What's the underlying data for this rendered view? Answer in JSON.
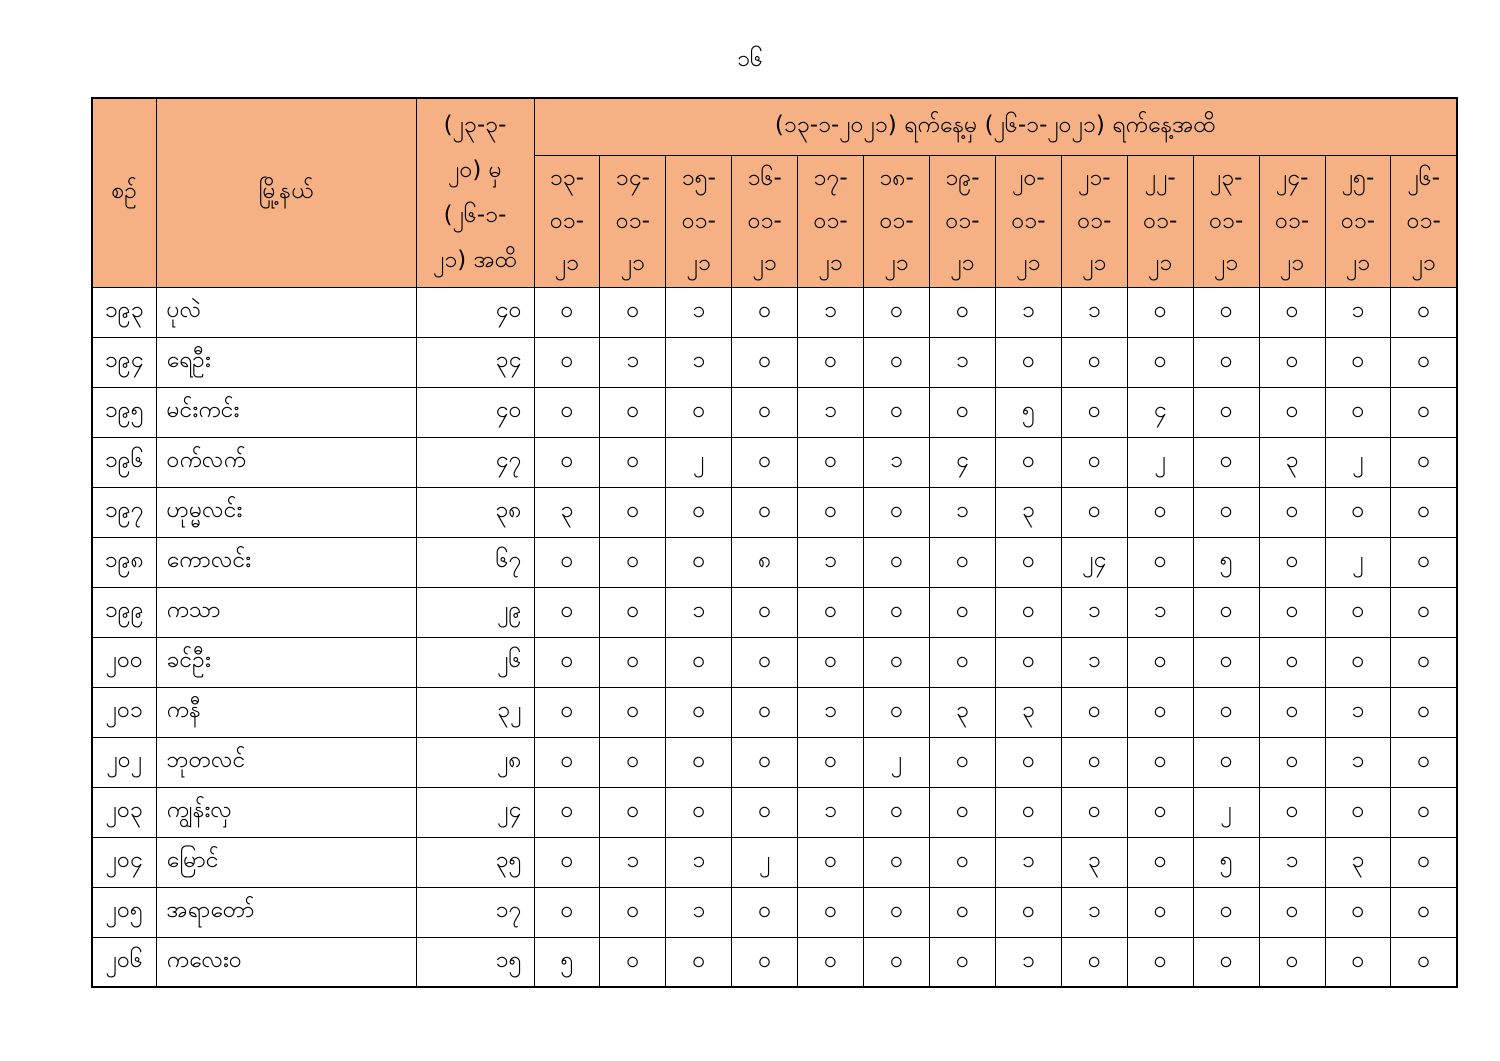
{
  "page": {
    "number": "၁၆"
  },
  "colors": {
    "header_bg": "#F5B183",
    "border": "#000000",
    "background": "#FFFFFF",
    "text": "#000000"
  },
  "table": {
    "header": {
      "serial": "စဉ်",
      "township": "မြို့နယ်",
      "cumulative_lines": [
        "(၂၃-၃-",
        "၂၀) မှ",
        "(၂၆-၁-",
        "၂၁) အထိ"
      ],
      "period": "(၁၃-၁-၂၀၂၁) ရက်နေ့မှ (၂၆-၁-၂၀၂၁) ရက်နေ့အထိ",
      "dates": [
        [
          "၁၃-",
          "၀၁-",
          "၂၁"
        ],
        [
          "၁၄-",
          "၀၁-",
          "၂၁"
        ],
        [
          "၁၅-",
          "၀၁-",
          "၂၁"
        ],
        [
          "၁၆-",
          "၀၁-",
          "၂၁"
        ],
        [
          "၁၇-",
          "၀၁-",
          "၂၁"
        ],
        [
          "၁၈-",
          "၀၁-",
          "၂၁"
        ],
        [
          "၁၉-",
          "၀၁-",
          "၂၁"
        ],
        [
          "၂၀-",
          "၀၁-",
          "၂၁"
        ],
        [
          "၂၁-",
          "၀၁-",
          "၂၁"
        ],
        [
          "၂၂-",
          "၀၁-",
          "၂၁"
        ],
        [
          "၂၃-",
          "၀၁-",
          "၂၁"
        ],
        [
          "၂၄-",
          "၀၁-",
          "၂၁"
        ],
        [
          "၂၅-",
          "၀၁-",
          "၂၁"
        ],
        [
          "၂၆-",
          "၀၁-",
          "၂၁"
        ]
      ]
    },
    "rows": [
      {
        "no": "၁၉၃",
        "township": "ပုလဲ",
        "total": "၄၀",
        "values": [
          "၀",
          "၀",
          "၁",
          "၀",
          "၁",
          "၀",
          "၀",
          "၁",
          "၁",
          "၀",
          "၀",
          "၀",
          "၁",
          "၀"
        ]
      },
      {
        "no": "၁၉၄",
        "township": "ရေဦး",
        "total": "၃၄",
        "values": [
          "၀",
          "၁",
          "၁",
          "၀",
          "၀",
          "၀",
          "၁",
          "၀",
          "၀",
          "၀",
          "၀",
          "၀",
          "၀",
          "၀"
        ]
      },
      {
        "no": "၁၉၅",
        "township": "မင်းကင်း",
        "total": "၄၀",
        "values": [
          "၀",
          "၀",
          "၀",
          "၀",
          "၁",
          "၀",
          "၀",
          "၅",
          "၀",
          "၄",
          "၀",
          "၀",
          "၀",
          "၀"
        ]
      },
      {
        "no": "၁၉၆",
        "township": "ဝက်လက်",
        "total": "၄၇",
        "values": [
          "၀",
          "၀",
          "၂",
          "၀",
          "၀",
          "၁",
          "၄",
          "၀",
          "၀",
          "၂",
          "၀",
          "၃",
          "၂",
          "၀"
        ]
      },
      {
        "no": "၁၉၇",
        "township": "ဟုမ္မလင်း",
        "total": "၃၈",
        "values": [
          "၃",
          "၀",
          "၀",
          "၀",
          "၀",
          "၀",
          "၁",
          "၃",
          "၀",
          "၀",
          "၀",
          "၀",
          "၀",
          "၀"
        ]
      },
      {
        "no": "၁၉၈",
        "township": "ကောလင်း",
        "total": "၆၇",
        "values": [
          "၀",
          "၀",
          "၀",
          "၈",
          "၁",
          "၀",
          "၀",
          "၀",
          "၂၄",
          "၀",
          "၅",
          "၀",
          "၂",
          "၀"
        ]
      },
      {
        "no": "၁၉၉",
        "township": "ကသာ",
        "total": "၂၉",
        "values": [
          "၀",
          "၀",
          "၁",
          "၀",
          "၀",
          "၀",
          "၀",
          "၀",
          "၁",
          "၁",
          "၀",
          "၀",
          "၀",
          "၀"
        ]
      },
      {
        "no": "၂၀၀",
        "township": "ခင်ဦး",
        "total": "၂၆",
        "values": [
          "၀",
          "၀",
          "၀",
          "၀",
          "၀",
          "၀",
          "၀",
          "၀",
          "၁",
          "၀",
          "၀",
          "၀",
          "၀",
          "၀"
        ]
      },
      {
        "no": "၂၀၁",
        "township": "ကနီ",
        "total": "၃၂",
        "values": [
          "၀",
          "၀",
          "၀",
          "၀",
          "၁",
          "၀",
          "၃",
          "၃",
          "၀",
          "၀",
          "၀",
          "၀",
          "၁",
          "၀"
        ]
      },
      {
        "no": "၂၀၂",
        "township": "ဘုတလင်",
        "total": "၂၈",
        "values": [
          "၀",
          "၀",
          "၀",
          "၀",
          "၀",
          "၂",
          "၀",
          "၀",
          "၀",
          "၀",
          "၀",
          "၀",
          "၁",
          "၀"
        ]
      },
      {
        "no": "၂၀၃",
        "township": "ကျွန်းလှ",
        "total": "၂၄",
        "values": [
          "၀",
          "၀",
          "၀",
          "၀",
          "၁",
          "၀",
          "၀",
          "၀",
          "၀",
          "၀",
          "၂",
          "၀",
          "၀",
          "၀"
        ]
      },
      {
        "no": "၂၀၄",
        "township": "မြောင်",
        "total": "၃၅",
        "values": [
          "၀",
          "၁",
          "၁",
          "၂",
          "၀",
          "၀",
          "၀",
          "၁",
          "၃",
          "၀",
          "၅",
          "၁",
          "၃",
          "၀"
        ]
      },
      {
        "no": "၂၀၅",
        "township": "အရာတော်",
        "total": "၁၇",
        "values": [
          "၀",
          "၀",
          "၁",
          "၀",
          "၀",
          "၀",
          "၀",
          "၀",
          "၁",
          "၀",
          "၀",
          "၀",
          "၀",
          "၀"
        ]
      },
      {
        "no": "၂၀၆",
        "township": "ကလေးဝ",
        "total": "၁၅",
        "values": [
          "၅",
          "၀",
          "၀",
          "၀",
          "၀",
          "၀",
          "၀",
          "၁",
          "၀",
          "၀",
          "၀",
          "၀",
          "၀",
          "၀"
        ]
      }
    ]
  }
}
